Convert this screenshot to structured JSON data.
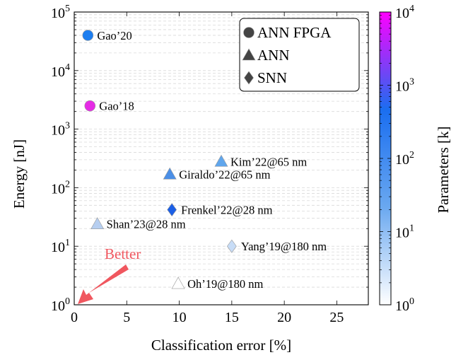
{
  "chart_data": {
    "type": "scatter",
    "xlabel": "Classification error [%]",
    "ylabel": "Energy [nJ]",
    "xlim": [
      0,
      28
    ],
    "ylim": [
      1,
      100000
    ],
    "y_scale": "log",
    "grid": "dashed y grid (major and minor)",
    "x_ticks": [
      0,
      5,
      10,
      15,
      20,
      25
    ],
    "y_ticks": [
      {
        "value": 1,
        "base": "10",
        "exp": "0"
      },
      {
        "value": 10,
        "base": "10",
        "exp": "1"
      },
      {
        "value": 100,
        "base": "10",
        "exp": "2"
      },
      {
        "value": 1000,
        "base": "10",
        "exp": "3"
      },
      {
        "value": 10000,
        "base": "10",
        "exp": "4"
      },
      {
        "value": 100000,
        "base": "10",
        "exp": "5"
      }
    ],
    "legend": {
      "position": "top-right",
      "entries": [
        {
          "marker": "circle",
          "label": "ANN FPGA"
        },
        {
          "marker": "triangle",
          "label": "ANN"
        },
        {
          "marker": "diamond",
          "label": "SNN"
        }
      ]
    },
    "colorbar": {
      "label": "Parameters [k]",
      "scale": "log",
      "range": [
        1,
        10000
      ],
      "colors": [
        "#ffffff",
        "#6aa8f0",
        "#1a6ef0",
        "#ff00ff"
      ],
      "ticks": [
        {
          "value": 1,
          "base": "10",
          "exp": "0"
        },
        {
          "value": 10,
          "base": "10",
          "exp": "1"
        },
        {
          "value": 100,
          "base": "10",
          "exp": "2"
        },
        {
          "value": 1000,
          "base": "10",
          "exp": "3"
        },
        {
          "value": 10000,
          "base": "10",
          "exp": "4"
        }
      ]
    },
    "points": [
      {
        "label": "Gao’20",
        "marker": "circle",
        "x": 1.3,
        "y": 40000,
        "color": "#1d7ef0"
      },
      {
        "label": "Gao’18",
        "marker": "circle",
        "x": 1.5,
        "y": 2500,
        "color": "#e52be5"
      },
      {
        "label": "Kim’22@65 nm",
        "marker": "triangle",
        "x": 14,
        "y": 280,
        "color": "#60a6ec"
      },
      {
        "label": "Giraldo’22@65 nm",
        "marker": "triangle",
        "x": 9.1,
        "y": 170,
        "color": "#4b8fe6"
      },
      {
        "label": "Frenkel’22@28 nm",
        "marker": "diamond",
        "x": 9.3,
        "y": 42,
        "color": "#1b5fe6"
      },
      {
        "label": "Shan’23@28 nm",
        "marker": "triangle",
        "x": 2.2,
        "y": 24,
        "color": "#b6cef0"
      },
      {
        "label": "Yang’19@180 nm",
        "marker": "diamond",
        "x": 15,
        "y": 10,
        "color": "#c7dcf6"
      },
      {
        "label": "Oh’19@180 nm",
        "marker": "triangle",
        "x": 9.9,
        "y": 2.3,
        "color": "#ffffff"
      }
    ],
    "annotation": {
      "text": "Better",
      "color": "#f0575f"
    }
  }
}
